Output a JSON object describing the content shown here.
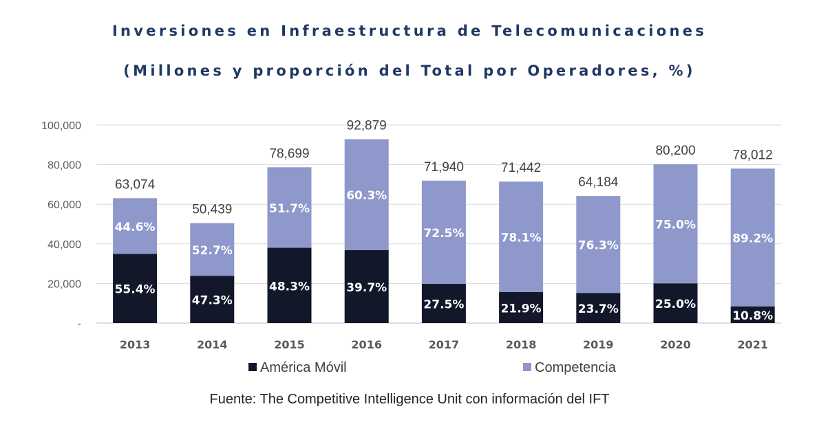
{
  "chart_data": {
    "type": "bar",
    "stacked": true,
    "title": "Inversiones en Infraestructura de Telecomunicaciones",
    "subtitle": "(Millones y proporción del Total por Operadores, %)",
    "categories": [
      "2013",
      "2014",
      "2015",
      "2016",
      "2017",
      "2018",
      "2019",
      "2020",
      "2021"
    ],
    "totals": [
      63074,
      50439,
      78699,
      92879,
      71940,
      71442,
      64184,
      80200,
      78012
    ],
    "total_labels": [
      "63,074",
      "50,439",
      "78,699",
      "92,879",
      "71,940",
      "71,442",
      "64,184",
      "80,200",
      "78,012"
    ],
    "series": [
      {
        "name": "América Móvil",
        "color": "#12172a",
        "shares": [
          55.4,
          47.3,
          48.3,
          39.7,
          27.5,
          21.9,
          23.7,
          25.0,
          10.8
        ],
        "labels": [
          "55.4%",
          "47.3%",
          "48.3%",
          "39.7%",
          "27.5%",
          "21.9%",
          "23.7%",
          "25.0%",
          "10.8%"
        ]
      },
      {
        "name": "Competencia",
        "color": "#8e98cb",
        "shares": [
          44.6,
          52.7,
          51.7,
          60.3,
          72.5,
          78.1,
          76.3,
          75.0,
          89.2
        ],
        "labels": [
          "44.6%",
          "52.7%",
          "51.7%",
          "60.3%",
          "72.5%",
          "78.1%",
          "76.3%",
          "75.0%",
          "89.2%"
        ]
      }
    ],
    "ylim": [
      0,
      100000
    ],
    "y_ticks": [
      0,
      20000,
      40000,
      60000,
      80000,
      100000
    ],
    "y_tick_labels": [
      "-",
      "20,000",
      "40,000",
      "60,000",
      "80,000",
      "100,000"
    ],
    "grid": true,
    "legend_position": "bottom"
  },
  "source": "Fuente: The Competitive Intelligence Unit con información del IFT"
}
